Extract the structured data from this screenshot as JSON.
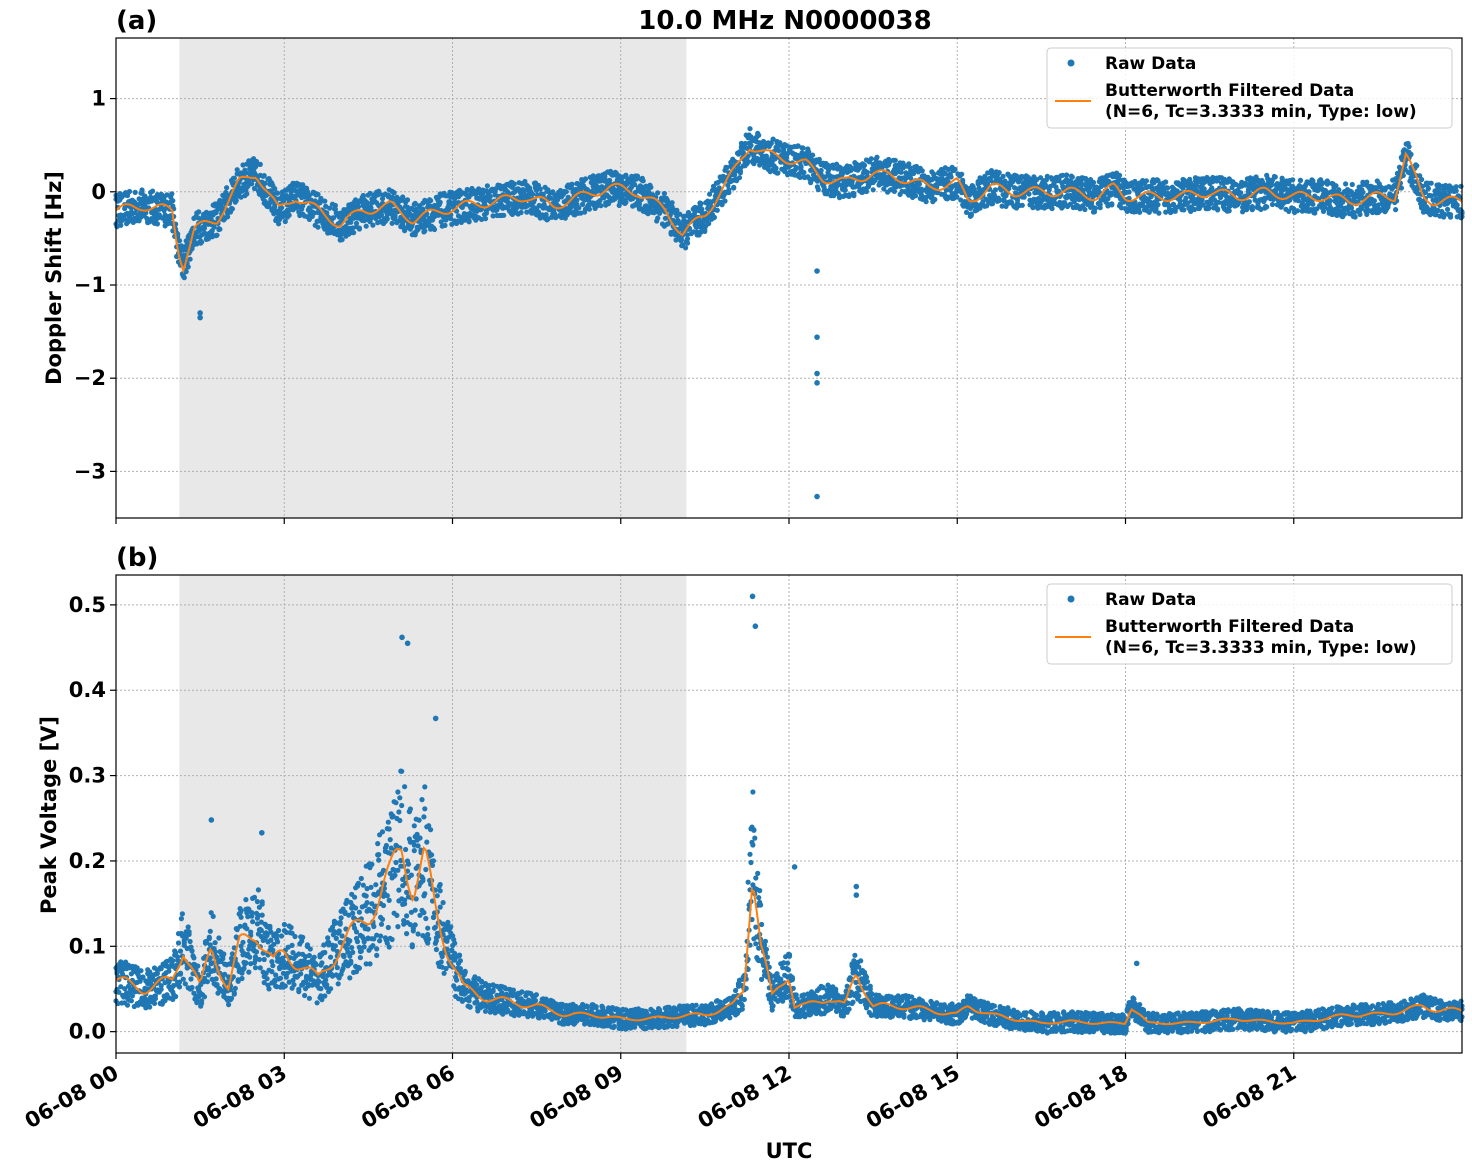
{
  "title": "10.0 MHz N0000038",
  "colors": {
    "raw": "#1f77b4",
    "filtered": "#ff7f0e",
    "night_shade": "#e8e8e8",
    "grid": "#b0b0b0"
  },
  "xaxis": {
    "label": "UTC",
    "range_hours": [
      0,
      24
    ],
    "ticks": [
      0,
      3,
      6,
      9,
      12,
      15,
      18,
      21
    ],
    "tick_labels": [
      "06-08 00",
      "06-08 03",
      "06-08 06",
      "06-08 09",
      "06-08 12",
      "06-08 15",
      "06-08 18",
      "06-08 21"
    ]
  },
  "shaded_region_hours": [
    1.13,
    10.17
  ],
  "legend": {
    "raw": "Raw Data",
    "filtered_line1": "Butterworth Filtered Data",
    "filtered_line2": "(N=6, Tc=3.3333 min, Type: low)"
  },
  "chart_data": [
    {
      "type": "scatter",
      "panel": "(a)",
      "ylabel": "Doppler Shift [Hz]",
      "ylim": [
        -3.5,
        1.65
      ],
      "yticks": [
        1,
        0,
        -1,
        -2,
        -3
      ],
      "ytick_labels": [
        "1",
        "0",
        "−1",
        "−2",
        "−3"
      ],
      "grid": true,
      "legend_position": "top-right",
      "series": [
        {
          "name": "Raw Data",
          "style": "points",
          "spread": 0.18,
          "x": [
            0,
            0.5,
            1.0,
            1.1,
            1.2,
            1.4,
            1.8,
            2.2,
            2.5,
            2.9,
            3.2,
            3.6,
            4.0,
            4.4,
            4.9,
            5.3,
            5.8,
            6.2,
            6.8,
            7.3,
            7.8,
            8.3,
            8.8,
            9.3,
            9.8,
            10.1,
            10.5,
            11.0,
            11.3,
            11.6,
            12.0,
            12.3,
            12.6,
            13.0,
            13.5,
            14.0,
            14.5,
            15.0,
            15.2,
            15.6,
            16.0,
            16.5,
            17.0,
            17.5,
            17.8,
            18.0,
            18.5,
            19.0,
            19.5,
            20.0,
            20.5,
            21.0,
            21.5,
            22.0,
            22.5,
            22.8,
            23.0,
            23.3,
            23.5,
            24.0
          ],
          "y": [
            -0.2,
            -0.15,
            -0.2,
            -0.6,
            -0.8,
            -0.4,
            -0.3,
            0.1,
            0.2,
            -0.2,
            -0.05,
            -0.2,
            -0.35,
            -0.2,
            -0.15,
            -0.3,
            -0.2,
            -0.15,
            -0.1,
            -0.05,
            -0.15,
            -0.05,
            0.05,
            0.0,
            -0.2,
            -0.45,
            -0.25,
            0.2,
            0.5,
            0.4,
            0.35,
            0.3,
            0.15,
            0.1,
            0.2,
            0.15,
            0.05,
            0.1,
            -0.1,
            0.05,
            0.0,
            0.0,
            0.0,
            -0.05,
            0.05,
            -0.05,
            -0.05,
            -0.05,
            0.0,
            -0.05,
            0.0,
            -0.05,
            -0.05,
            -0.1,
            -0.05,
            -0.05,
            0.4,
            -0.05,
            -0.1,
            -0.1
          ]
        },
        {
          "name": "Butterworth Filtered Data",
          "style": "line",
          "x": [
            0,
            0.5,
            1.0,
            1.1,
            1.2,
            1.4,
            1.8,
            2.2,
            2.5,
            2.9,
            3.2,
            3.6,
            4.0,
            4.4,
            4.9,
            5.3,
            5.8,
            6.2,
            6.8,
            7.3,
            7.8,
            8.3,
            8.8,
            9.3,
            9.8,
            10.1,
            10.5,
            11.0,
            11.3,
            11.6,
            12.0,
            12.3,
            12.6,
            13.0,
            13.5,
            14.0,
            14.5,
            15.0,
            15.2,
            15.6,
            16.0,
            16.5,
            17.0,
            17.5,
            17.8,
            18.0,
            18.5,
            19.0,
            19.5,
            20.0,
            20.5,
            21.0,
            21.5,
            22.0,
            22.5,
            22.8,
            23.0,
            23.3,
            23.5,
            24.0
          ],
          "y": [
            -0.2,
            -0.15,
            -0.2,
            -0.6,
            -0.8,
            -0.4,
            -0.3,
            0.1,
            0.2,
            -0.2,
            -0.05,
            -0.2,
            -0.35,
            -0.2,
            -0.15,
            -0.3,
            -0.2,
            -0.15,
            -0.1,
            -0.05,
            -0.15,
            -0.05,
            0.05,
            0.0,
            -0.2,
            -0.45,
            -0.25,
            0.2,
            0.5,
            0.4,
            0.35,
            0.3,
            0.15,
            0.1,
            0.2,
            0.15,
            0.05,
            0.1,
            -0.1,
            0.05,
            0.0,
            0.0,
            0.0,
            -0.05,
            0.05,
            -0.05,
            -0.05,
            -0.05,
            0.0,
            -0.05,
            0.0,
            -0.05,
            -0.05,
            -0.1,
            -0.05,
            -0.05,
            0.4,
            -0.05,
            -0.1,
            -0.1
          ]
        },
        {
          "name": "Raw Data outliers",
          "style": "points",
          "x": [
            12.5,
            12.5,
            12.5,
            12.5,
            12.5,
            1.5,
            1.5
          ],
          "y": [
            -0.85,
            -1.56,
            -1.95,
            -2.05,
            -3.27,
            -1.3,
            -1.35
          ]
        }
      ]
    },
    {
      "type": "scatter",
      "panel": "(b)",
      "ylabel": "Peak Voltage [V]",
      "ylim": [
        -0.025,
        0.535
      ],
      "yticks": [
        0.5,
        0.4,
        0.3,
        0.2,
        0.1,
        0.0
      ],
      "ytick_labels": [
        "0.5",
        "0.4",
        "0.3",
        "0.2",
        "0.1",
        "0.0"
      ],
      "grid": true,
      "legend_position": "top-right",
      "series": [
        {
          "name": "Raw Data",
          "style": "points",
          "spread": 0.03,
          "x": [
            0,
            0.5,
            1.0,
            1.2,
            1.5,
            1.7,
            2.0,
            2.2,
            2.5,
            2.8,
            3.0,
            3.3,
            3.6,
            4.0,
            4.3,
            4.6,
            4.9,
            5.1,
            5.3,
            5.5,
            5.7,
            5.9,
            6.2,
            6.6,
            7.0,
            7.5,
            8.0,
            8.5,
            9.0,
            9.5,
            10.0,
            10.5,
            11.0,
            11.2,
            11.35,
            11.5,
            11.7,
            12.0,
            12.1,
            12.3,
            12.7,
            13.0,
            13.2,
            13.5,
            14.0,
            14.5,
            15.0,
            15.2,
            15.6,
            16.0,
            16.5,
            17.0,
            17.5,
            18.0,
            18.1,
            18.4,
            19.0,
            19.5,
            20.0,
            20.5,
            21.0,
            21.5,
            22.0,
            22.5,
            23.0,
            23.3,
            23.6,
            24.0
          ],
          "y": [
            0.06,
            0.05,
            0.06,
            0.1,
            0.05,
            0.1,
            0.05,
            0.1,
            0.12,
            0.08,
            0.09,
            0.08,
            0.06,
            0.1,
            0.12,
            0.15,
            0.18,
            0.22,
            0.17,
            0.2,
            0.14,
            0.1,
            0.05,
            0.04,
            0.035,
            0.03,
            0.02,
            0.02,
            0.015,
            0.015,
            0.018,
            0.02,
            0.03,
            0.05,
            0.2,
            0.1,
            0.04,
            0.07,
            0.03,
            0.03,
            0.04,
            0.03,
            0.07,
            0.03,
            0.03,
            0.025,
            0.02,
            0.03,
            0.02,
            0.015,
            0.01,
            0.012,
            0.01,
            0.01,
            0.03,
            0.01,
            0.01,
            0.012,
            0.015,
            0.012,
            0.01,
            0.015,
            0.02,
            0.02,
            0.025,
            0.03,
            0.025,
            0.025
          ]
        },
        {
          "name": "Butterworth Filtered Data",
          "style": "line",
          "x": [
            0,
            0.5,
            1.0,
            1.2,
            1.5,
            1.7,
            2.0,
            2.2,
            2.5,
            2.8,
            3.0,
            3.3,
            3.6,
            4.0,
            4.3,
            4.6,
            4.9,
            5.1,
            5.3,
            5.5,
            5.7,
            5.9,
            6.2,
            6.6,
            7.0,
            7.5,
            8.0,
            8.5,
            9.0,
            9.5,
            10.0,
            10.5,
            11.0,
            11.2,
            11.35,
            11.5,
            11.7,
            12.0,
            12.1,
            12.3,
            12.7,
            13.0,
            13.2,
            13.5,
            14.0,
            14.5,
            15.0,
            15.2,
            15.6,
            16.0,
            16.5,
            17.0,
            17.5,
            18.0,
            18.1,
            18.4,
            19.0,
            19.5,
            20.0,
            20.5,
            21.0,
            21.5,
            22.0,
            22.5,
            23.0,
            23.3,
            23.6,
            24.0
          ],
          "y": [
            0.06,
            0.05,
            0.06,
            0.1,
            0.05,
            0.1,
            0.05,
            0.1,
            0.12,
            0.08,
            0.09,
            0.08,
            0.06,
            0.1,
            0.12,
            0.15,
            0.18,
            0.22,
            0.17,
            0.2,
            0.14,
            0.1,
            0.05,
            0.04,
            0.035,
            0.03,
            0.02,
            0.02,
            0.015,
            0.015,
            0.018,
            0.02,
            0.03,
            0.05,
            0.2,
            0.1,
            0.04,
            0.07,
            0.03,
            0.03,
            0.04,
            0.03,
            0.07,
            0.03,
            0.03,
            0.025,
            0.02,
            0.03,
            0.02,
            0.015,
            0.01,
            0.012,
            0.01,
            0.01,
            0.03,
            0.01,
            0.01,
            0.012,
            0.015,
            0.012,
            0.01,
            0.015,
            0.02,
            0.02,
            0.025,
            0.03,
            0.025,
            0.025
          ]
        },
        {
          "name": "Raw Data peaks",
          "style": "points",
          "x": [
            1.7,
            2.6,
            5.1,
            5.2,
            5.7,
            11.35,
            11.4,
            12.1,
            13.2,
            13.2,
            18.2
          ],
          "y": [
            0.248,
            0.233,
            0.462,
            0.455,
            0.367,
            0.51,
            0.475,
            0.193,
            0.17,
            0.16,
            0.08
          ]
        }
      ]
    }
  ]
}
